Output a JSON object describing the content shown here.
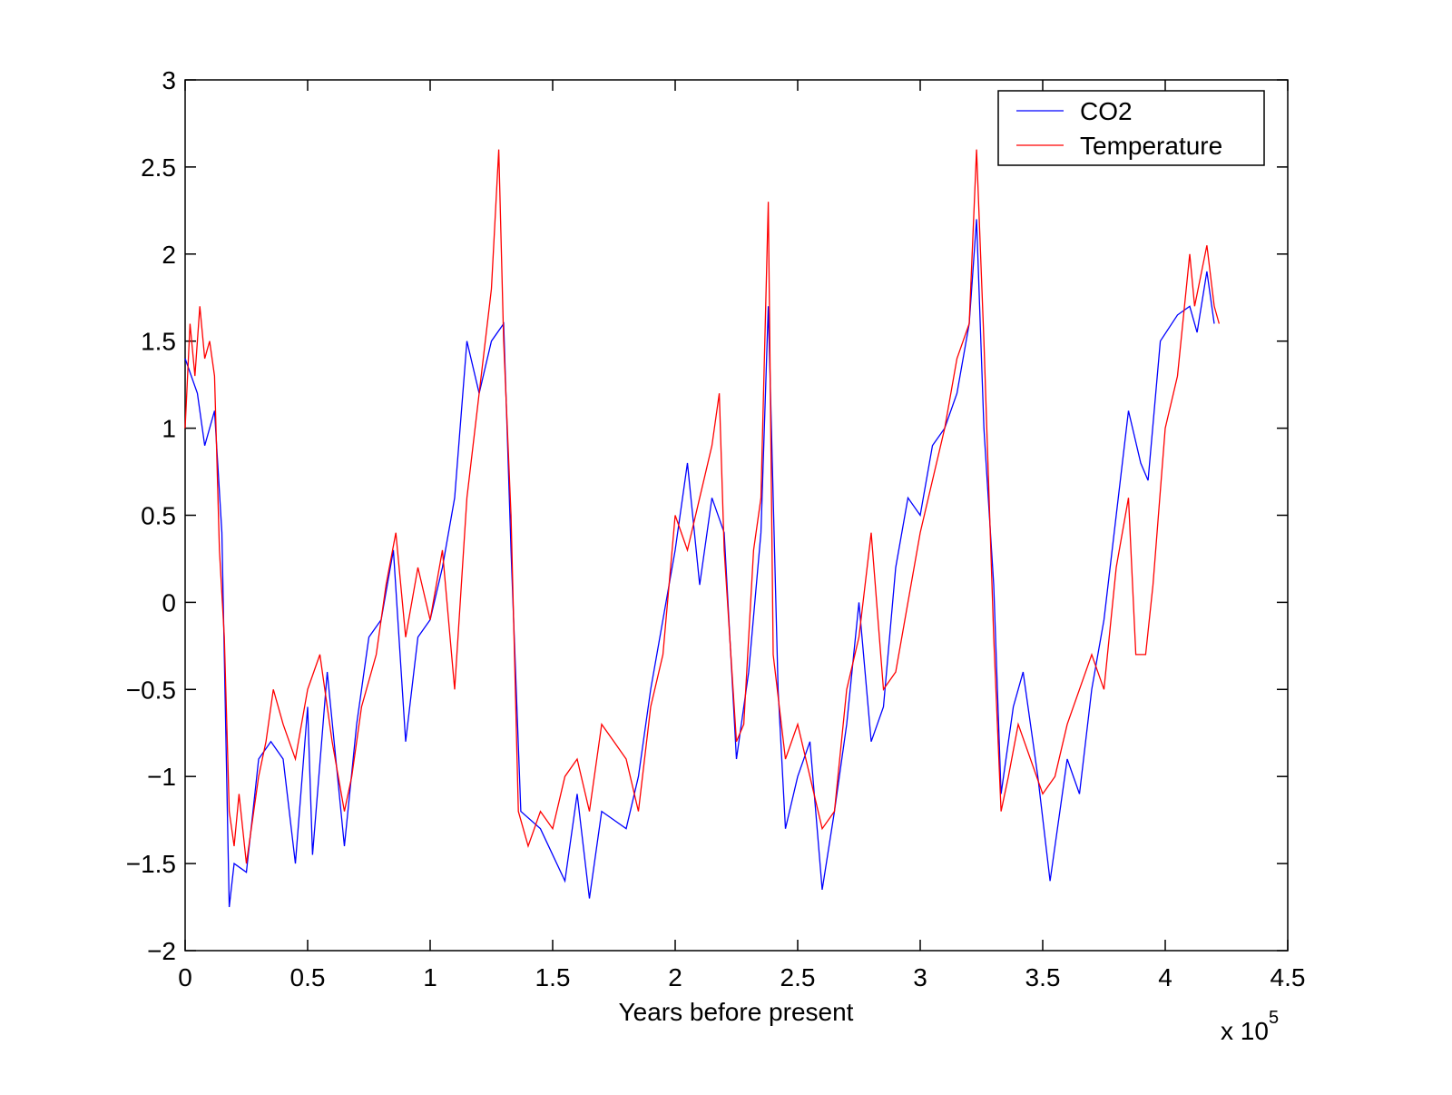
{
  "chart_data": {
    "type": "line",
    "xlabel": "Years before present",
    "x_multiplier": {
      "base": "x 10",
      "exponent": "5"
    },
    "xlim": [
      0,
      4.5
    ],
    "xticks": [
      0,
      0.5,
      1,
      1.5,
      2,
      2.5,
      3,
      3.5,
      4,
      4.5
    ],
    "ylim": [
      -2,
      3
    ],
    "yticks": [
      {
        "value": -2,
        "label": "−2"
      },
      {
        "value": -1.5,
        "label": "−1.5"
      },
      {
        "value": -1,
        "label": "−1"
      },
      {
        "value": -0.5,
        "label": "−0.5"
      },
      0,
      0.5,
      1,
      1.5,
      2,
      2.5,
      3
    ],
    "grid": false,
    "legend": "upper right",
    "series": [
      {
        "name": "CO2",
        "color": "#0000ff",
        "x": [
          0,
          0.05,
          0.08,
          0.12,
          0.15,
          0.18,
          0.2,
          0.25,
          0.3,
          0.35,
          0.4,
          0.45,
          0.5,
          0.52,
          0.58,
          0.65,
          0.7,
          0.75,
          0.8,
          0.85,
          0.9,
          0.95,
          1.0,
          1.05,
          1.1,
          1.15,
          1.2,
          1.25,
          1.3,
          1.33,
          1.37,
          1.45,
          1.55,
          1.6,
          1.65,
          1.7,
          1.75,
          1.8,
          1.85,
          1.9,
          1.95,
          2.0,
          2.05,
          2.1,
          2.15,
          2.2,
          2.25,
          2.3,
          2.35,
          2.38,
          2.42,
          2.45,
          2.5,
          2.55,
          2.6,
          2.65,
          2.7,
          2.75,
          2.8,
          2.85,
          2.9,
          2.95,
          3.0,
          3.05,
          3.1,
          3.15,
          3.2,
          3.23,
          3.26,
          3.3,
          3.33,
          3.38,
          3.42,
          3.48,
          3.53,
          3.6,
          3.65,
          3.7,
          3.75,
          3.8,
          3.85,
          3.9,
          3.93,
          3.98,
          4.05,
          4.1,
          4.13,
          4.17,
          4.2
        ],
        "values": [
          1.4,
          1.2,
          0.9,
          1.1,
          0.4,
          -1.75,
          -1.5,
          -1.55,
          -0.9,
          -0.8,
          -0.9,
          -1.5,
          -0.6,
          -1.45,
          -0.4,
          -1.4,
          -0.7,
          -0.2,
          -0.1,
          0.3,
          -0.8,
          -0.2,
          -0.1,
          0.2,
          0.6,
          1.5,
          1.2,
          1.5,
          1.6,
          0.3,
          -1.2,
          -1.3,
          -1.6,
          -1.1,
          -1.7,
          -1.2,
          -1.25,
          -1.3,
          -1.0,
          -0.5,
          -0.1,
          0.3,
          0.8,
          0.1,
          0.6,
          0.4,
          -0.9,
          -0.4,
          0.4,
          1.7,
          -0.5,
          -1.3,
          -1.0,
          -0.8,
          -1.65,
          -1.2,
          -0.7,
          0.0,
          -0.8,
          -0.6,
          0.2,
          0.6,
          0.5,
          0.9,
          1.0,
          1.2,
          1.6,
          2.2,
          1.0,
          0.1,
          -1.1,
          -0.6,
          -0.4,
          -1.0,
          -1.6,
          -0.9,
          -1.1,
          -0.5,
          -0.1,
          0.5,
          1.1,
          0.8,
          0.7,
          1.5,
          1.65,
          1.7,
          1.55,
          1.9,
          1.6
        ]
      },
      {
        "name": "Temperature",
        "color": "#ff0000",
        "x": [
          0,
          0.02,
          0.04,
          0.06,
          0.08,
          0.1,
          0.12,
          0.14,
          0.16,
          0.18,
          0.2,
          0.22,
          0.25,
          0.28,
          0.3,
          0.33,
          0.36,
          0.4,
          0.45,
          0.5,
          0.55,
          0.6,
          0.65,
          0.68,
          0.72,
          0.78,
          0.82,
          0.86,
          0.9,
          0.95,
          1.0,
          1.05,
          1.1,
          1.15,
          1.2,
          1.25,
          1.28,
          1.3,
          1.33,
          1.36,
          1.4,
          1.45,
          1.5,
          1.55,
          1.6,
          1.65,
          1.7,
          1.75,
          1.8,
          1.85,
          1.9,
          1.95,
          2.0,
          2.05,
          2.1,
          2.15,
          2.18,
          2.2,
          2.25,
          2.28,
          2.32,
          2.35,
          2.38,
          2.4,
          2.45,
          2.5,
          2.55,
          2.6,
          2.65,
          2.7,
          2.75,
          2.8,
          2.85,
          2.9,
          2.95,
          3.0,
          3.05,
          3.1,
          3.15,
          3.2,
          3.23,
          3.26,
          3.3,
          3.33,
          3.36,
          3.4,
          3.45,
          3.5,
          3.55,
          3.6,
          3.65,
          3.7,
          3.75,
          3.8,
          3.85,
          3.88,
          3.92,
          3.95,
          4.0,
          4.05,
          4.1,
          4.12,
          4.17,
          4.2,
          4.22
        ],
        "values": [
          1.0,
          1.6,
          1.3,
          1.7,
          1.4,
          1.5,
          1.3,
          0.3,
          -0.2,
          -1.2,
          -1.4,
          -1.1,
          -1.5,
          -1.2,
          -1.0,
          -0.8,
          -0.5,
          -0.7,
          -0.9,
          -0.5,
          -0.3,
          -0.8,
          -1.2,
          -1.0,
          -0.6,
          -0.3,
          0.1,
          0.4,
          -0.2,
          0.2,
          -0.1,
          0.3,
          -0.5,
          0.6,
          1.2,
          1.8,
          2.6,
          1.5,
          0.5,
          -1.2,
          -1.4,
          -1.2,
          -1.3,
          -1.0,
          -0.9,
          -1.2,
          -0.7,
          -0.8,
          -0.9,
          -1.2,
          -0.6,
          -0.3,
          0.5,
          0.3,
          0.6,
          0.9,
          1.2,
          0.3,
          -0.8,
          -0.7,
          0.3,
          0.6,
          2.3,
          -0.3,
          -0.9,
          -0.7,
          -1.0,
          -1.3,
          -1.2,
          -0.5,
          -0.2,
          0.4,
          -0.5,
          -0.4,
          0.0,
          0.4,
          0.7,
          1.0,
          1.4,
          1.6,
          2.6,
          1.5,
          -0.2,
          -1.2,
          -1.0,
          -0.7,
          -0.9,
          -1.1,
          -1.0,
          -0.7,
          -0.5,
          -0.3,
          -0.5,
          0.2,
          0.6,
          -0.3,
          -0.3,
          0.1,
          1.0,
          1.3,
          2.0,
          1.7,
          2.05,
          1.7,
          1.6
        ]
      }
    ]
  }
}
